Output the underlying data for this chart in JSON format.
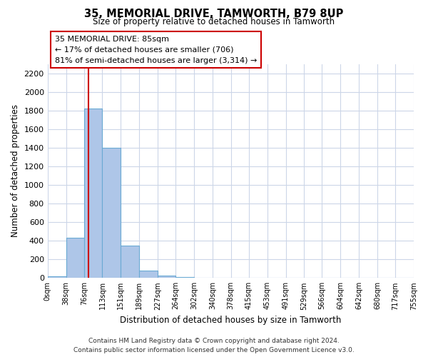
{
  "title": "35, MEMORIAL DRIVE, TAMWORTH, B79 8UP",
  "subtitle": "Size of property relative to detached houses in Tamworth",
  "xlabel": "Distribution of detached houses by size in Tamworth",
  "ylabel": "Number of detached properties",
  "bin_edges": [
    0,
    38,
    76,
    113,
    151,
    189,
    227,
    264,
    302,
    340,
    378,
    415,
    453,
    491,
    529,
    566,
    604,
    642,
    680,
    717,
    755
  ],
  "bin_labels": [
    "0sqm",
    "38sqm",
    "76sqm",
    "113sqm",
    "151sqm",
    "189sqm",
    "227sqm",
    "264sqm",
    "302sqm",
    "340sqm",
    "378sqm",
    "415sqm",
    "453sqm",
    "491sqm",
    "529sqm",
    "566sqm",
    "604sqm",
    "642sqm",
    "680sqm",
    "717sqm",
    "755sqm"
  ],
  "bar_heights": [
    15,
    430,
    1820,
    1400,
    350,
    80,
    25,
    10,
    0,
    0,
    0,
    0,
    0,
    0,
    0,
    0,
    0,
    0,
    0,
    0
  ],
  "bar_color": "#aec6e8",
  "bar_edge_color": "#6aaad4",
  "ylim": [
    0,
    2300
  ],
  "yticks": [
    0,
    200,
    400,
    600,
    800,
    1000,
    1200,
    1400,
    1600,
    1800,
    2000,
    2200
  ],
  "property_sqm": 85,
  "property_line_color": "#cc0000",
  "annotation_title": "35 MEMORIAL DRIVE: 85sqm",
  "annotation_line1": "← 17% of detached houses are smaller (706)",
  "annotation_line2": "81% of semi-detached houses are larger (3,314) →",
  "footer_line1": "Contains HM Land Registry data © Crown copyright and database right 2024.",
  "footer_line2": "Contains public sector information licensed under the Open Government Licence v3.0.",
  "background_color": "#ffffff",
  "grid_color": "#ccd6e8"
}
